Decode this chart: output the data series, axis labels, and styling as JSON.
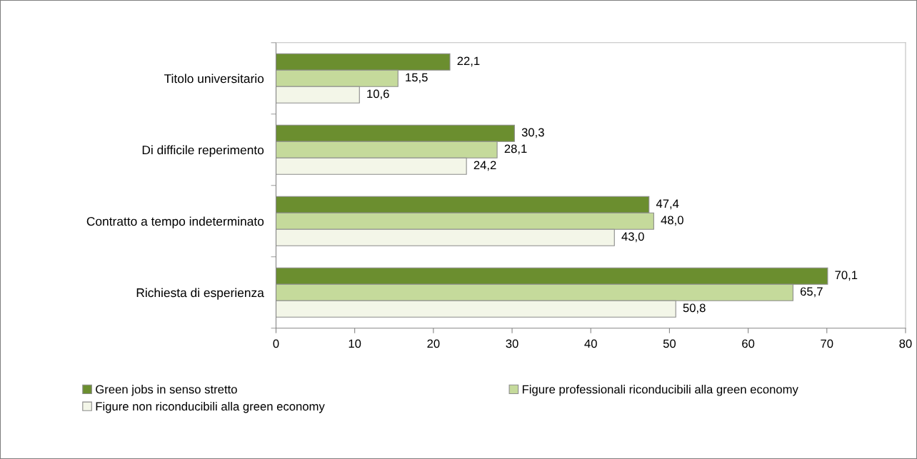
{
  "chart_data": {
    "type": "bar",
    "orientation": "horizontal",
    "categories": [
      "Titolo universitario",
      "Di difficile reperimento",
      "Contratto a tempo indeterminato",
      "Richiesta di esperienza"
    ],
    "series": [
      {
        "name": "Green jobs in senso stretto",
        "color": "#6b8e2f",
        "values": [
          22.1,
          30.3,
          47.4,
          70.1
        ],
        "value_labels": [
          "22,1",
          "30,3",
          "47,4",
          "70,1"
        ]
      },
      {
        "name": "Figure professionali riconducibili alla green economy",
        "color": "#c5da9b",
        "values": [
          15.5,
          28.1,
          48.0,
          65.7
        ],
        "value_labels": [
          "15,5",
          "28,1",
          "48,0",
          "65,7"
        ]
      },
      {
        "name": "Figure non riconducibili alla green economy",
        "color": "#f3f6e8",
        "values": [
          10.6,
          24.2,
          43.0,
          50.8
        ],
        "value_labels": [
          "10,6",
          "24,2",
          "43,0",
          "50,8"
        ]
      }
    ],
    "xlim": [
      0,
      80
    ],
    "xticks": [
      0,
      10,
      20,
      30,
      40,
      50,
      60,
      70,
      80
    ],
    "legend": "bottom",
    "grid": false
  }
}
